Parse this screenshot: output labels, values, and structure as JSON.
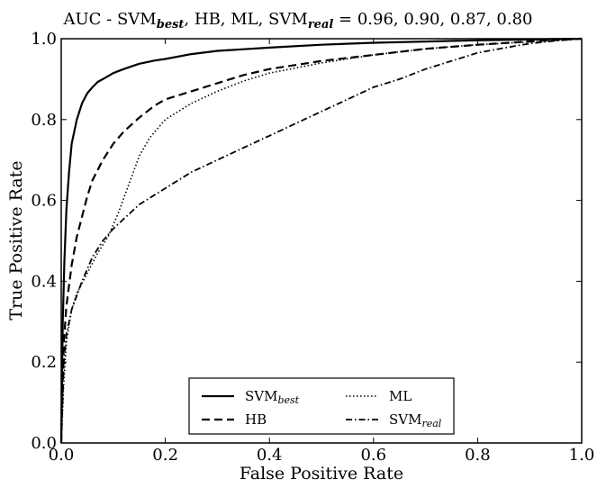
{
  "chart_data": {
    "type": "line",
    "title_parts": [
      {
        "text": "AUC - SVM",
        "sub": false
      },
      {
        "text": "best",
        "sub": true
      },
      {
        "text": ", HB, ML, SVM",
        "sub": false
      },
      {
        "text": "real",
        "sub": true
      },
      {
        "text": " = 0.96, 0.90, 0.87, 0.80",
        "sub": false
      }
    ],
    "xlabel": "False Positive Rate",
    "ylabel": "True Positive Rate",
    "xlim": [
      0,
      1
    ],
    "ylim": [
      0,
      1
    ],
    "xticks": [
      0.0,
      0.2,
      0.4,
      0.6,
      0.8,
      1.0
    ],
    "xtick_labels": [
      "0.0",
      "0.2",
      "0.4",
      "0.6",
      "0.8",
      "1.0"
    ],
    "yticks": [
      0.0,
      0.2,
      0.4,
      0.6,
      0.8,
      1.0
    ],
    "ytick_labels": [
      "0.0",
      "0.2",
      "0.4",
      "0.6",
      "0.8",
      "1.0"
    ],
    "grid": false,
    "legend_position": "bottom-center",
    "series": [
      {
        "name": "SVM",
        "name_sub": "best",
        "dash": "solid",
        "x": [
          0,
          0.003,
          0.006,
          0.01,
          0.015,
          0.02,
          0.03,
          0.04,
          0.05,
          0.06,
          0.07,
          0.08,
          0.1,
          0.12,
          0.15,
          0.18,
          0.2,
          0.25,
          0.3,
          0.35,
          0.4,
          0.5,
          0.6,
          0.7,
          0.8,
          0.9,
          1.0
        ],
        "y": [
          0,
          0.3,
          0.45,
          0.58,
          0.67,
          0.74,
          0.8,
          0.84,
          0.865,
          0.88,
          0.893,
          0.9,
          0.915,
          0.925,
          0.938,
          0.946,
          0.95,
          0.962,
          0.97,
          0.974,
          0.978,
          0.985,
          0.99,
          0.993,
          0.996,
          0.998,
          1.0
        ]
      },
      {
        "name": "HB",
        "dash": "dashed",
        "x": [
          0,
          0.005,
          0.01,
          0.02,
          0.03,
          0.04,
          0.05,
          0.06,
          0.08,
          0.1,
          0.12,
          0.15,
          0.18,
          0.2,
          0.25,
          0.3,
          0.35,
          0.4,
          0.5,
          0.6,
          0.7,
          0.8,
          0.9,
          1.0
        ],
        "y": [
          0,
          0.25,
          0.34,
          0.44,
          0.51,
          0.56,
          0.61,
          0.65,
          0.7,
          0.74,
          0.77,
          0.805,
          0.835,
          0.85,
          0.87,
          0.89,
          0.91,
          0.925,
          0.945,
          0.96,
          0.975,
          0.985,
          0.993,
          1.0
        ]
      },
      {
        "name": "ML",
        "dash": "dotted",
        "x": [
          0,
          0.005,
          0.01,
          0.02,
          0.03,
          0.05,
          0.07,
          0.09,
          0.11,
          0.13,
          0.15,
          0.17,
          0.2,
          0.25,
          0.3,
          0.35,
          0.4,
          0.5,
          0.6,
          0.7,
          0.8,
          0.9,
          1.0
        ],
        "y": [
          0,
          0.15,
          0.25,
          0.33,
          0.37,
          0.42,
          0.47,
          0.51,
          0.57,
          0.64,
          0.71,
          0.755,
          0.8,
          0.84,
          0.87,
          0.895,
          0.915,
          0.94,
          0.96,
          0.975,
          0.985,
          0.992,
          1.0
        ]
      },
      {
        "name": "SVM",
        "name_sub": "real",
        "dash": "dashdot",
        "x": [
          0,
          0.005,
          0.01,
          0.02,
          0.04,
          0.06,
          0.08,
          0.1,
          0.15,
          0.2,
          0.25,
          0.3,
          0.35,
          0.4,
          0.45,
          0.5,
          0.55,
          0.6,
          0.65,
          0.7,
          0.75,
          0.8,
          0.85,
          0.9,
          0.95,
          1.0
        ],
        "y": [
          0,
          0.2,
          0.27,
          0.33,
          0.4,
          0.46,
          0.5,
          0.53,
          0.59,
          0.63,
          0.67,
          0.7,
          0.73,
          0.76,
          0.79,
          0.82,
          0.85,
          0.88,
          0.9,
          0.925,
          0.945,
          0.965,
          0.977,
          0.988,
          0.995,
          1.0
        ]
      }
    ]
  }
}
